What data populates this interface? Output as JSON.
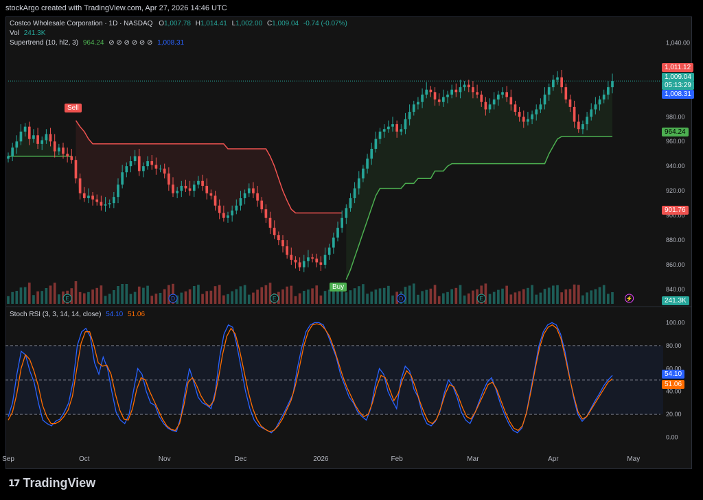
{
  "header": {
    "text": "stockArgo created with TradingView.com, Apr 27, 2026 14:46 UTC"
  },
  "legend": {
    "symbol": "Costco Wholesale Corporation · 1D · NASDAQ",
    "o_label": "O",
    "o": "1,007.78",
    "h_label": "H",
    "h": "1,014.41",
    "l_label": "L",
    "l": "1,002.00",
    "c_label": "C",
    "c": "1,009.04",
    "change": "-0.74 (-0.07%)",
    "vol_label": "Vol",
    "vol": "241.3K",
    "supertrend_label": "Supertrend (10, hl2, 3)",
    "supertrend_value": "964.24",
    "supertrend_empty": "⊘ ⊘ ⊘ ⊘ ⊘ ⊘",
    "supertrend_value2": "1,008.31",
    "stoch_label": "Stoch RSI (3, 3, 14, 14, close)",
    "stoch_k": "54.10",
    "stoch_d": "51.06"
  },
  "price_tags": {
    "high": "1,011.12",
    "last": "1,009.04",
    "countdown": "05:13:29",
    "supertrend_up": "1,008.31",
    "supertrend_low": "964.24",
    "sell_level": "901.76",
    "volume": "241.3K"
  },
  "signals": {
    "sell": "Sell",
    "buy": "Buy"
  },
  "markers": {
    "earnings": "E",
    "dividend": "D",
    "split": "⚡"
  },
  "footer": {
    "brand": "TradingView"
  },
  "colors": {
    "up": "#26a69a",
    "down": "#ef5350",
    "supertrend_up": "#4caf50",
    "supertrend_down": "#ef5350",
    "stoch_k": "#2962ff",
    "stoch_d": "#ff6d00"
  },
  "chart_data": [
    {
      "type": "candlestick",
      "title": "Costco Wholesale Corporation · 1D · NASDAQ",
      "y_ticks": [
        840,
        860,
        880,
        900,
        920,
        940,
        960,
        980,
        1000,
        1020,
        1040
      ],
      "y_tick_labels": [
        "840.00",
        "860.00",
        "880.00",
        "900.00",
        "920.00",
        "940.00",
        "960.00",
        "980.00",
        "1,000.00",
        "1,020.00",
        "1,040.00"
      ],
      "ylim": [
        830,
        1048
      ],
      "x_tick_labels": [
        "Sep",
        "Oct",
        "Nov",
        "Dec",
        "2026",
        "Feb",
        "Mar",
        "Apr",
        "May"
      ],
      "x_tick_positions": [
        0,
        18,
        37,
        55,
        74,
        92,
        110,
        129,
        148
      ],
      "close": [
        948,
        955,
        960,
        968,
        972,
        962,
        965,
        958,
        961,
        966,
        960,
        952,
        955,
        950,
        948,
        945,
        930,
        918,
        914,
        916,
        913,
        911,
        908,
        909,
        910,
        915,
        925,
        935,
        940,
        944,
        948,
        936,
        940,
        944,
        941,
        938,
        938,
        934,
        925,
        918,
        920,
        924,
        922,
        920,
        925,
        928,
        924,
        918,
        916,
        908,
        902,
        898,
        900,
        904,
        908,
        914,
        918,
        922,
        918,
        912,
        905,
        898,
        890,
        884,
        880,
        875,
        868,
        864,
        862,
        858,
        863,
        866,
        865,
        862,
        860,
        868,
        874,
        882,
        890,
        898,
        906,
        914,
        922,
        930,
        938,
        946,
        954,
        962,
        968,
        970,
        972,
        974,
        968,
        970,
        978,
        984,
        990,
        992,
        998,
        1002,
        1000,
        994,
        992,
        996,
        998,
        1002,
        1000,
        1004,
        1006,
        1004,
        1000,
        998,
        992,
        986,
        990,
        994,
        998,
        1000,
        996,
        990,
        984,
        980,
        976,
        978,
        982,
        986,
        990,
        998,
        1004,
        1010,
        1012,
        1004,
        994,
        988,
        976,
        970,
        974,
        980,
        986,
        990,
        994,
        998,
        1004,
        1009
      ],
      "supertrend_up_start": 80,
      "supertrend": [
        948,
        948,
        948,
        948,
        948,
        948,
        948,
        948,
        948,
        948,
        948,
        948,
        948,
        948,
        948,
        948,
        977,
        972,
        968,
        962,
        958,
        958,
        958,
        958,
        958,
        958,
        958,
        958,
        958,
        958,
        958,
        958,
        958,
        958,
        958,
        958,
        958,
        958,
        958,
        958,
        958,
        958,
        958,
        958,
        958,
        958,
        958,
        958,
        958,
        958,
        958,
        958,
        954,
        954,
        954,
        954,
        954,
        954,
        954,
        954,
        954,
        954,
        948,
        940,
        930,
        920,
        912,
        905,
        902,
        902,
        902,
        902,
        902,
        902,
        902,
        902,
        902,
        902,
        902,
        902,
        848,
        856,
        866,
        876,
        886,
        896,
        906,
        916,
        922,
        922,
        922,
        922,
        922,
        922,
        926,
        926,
        926,
        930,
        930,
        930,
        930,
        936,
        936,
        936,
        940,
        942,
        942,
        942,
        942,
        942,
        942,
        942,
        942,
        942,
        942,
        942,
        942,
        942,
        942,
        942,
        942,
        942,
        942,
        942,
        942,
        942,
        942,
        942,
        950,
        956,
        962,
        964,
        964,
        964,
        964,
        964,
        964,
        964,
        964,
        964,
        964,
        964,
        964,
        964,
        964,
        964
      ]
    },
    {
      "type": "line",
      "title": "Stoch RSI (3, 3, 14, 14, close)",
      "ylim": [
        -5,
        105
      ],
      "y_ticks": [
        0,
        20,
        40,
        60,
        80,
        100
      ],
      "y_tick_labels": [
        "0.00",
        "20.00",
        "40.00",
        "60.00",
        "80.00",
        "100.00"
      ],
      "bands": [
        20,
        50,
        80
      ],
      "series": [
        {
          "name": "K",
          "values": [
            18,
            30,
            55,
            75,
            72,
            58,
            48,
            30,
            15,
            12,
            10,
            14,
            16,
            22,
            30,
            48,
            80,
            92,
            95,
            88,
            65,
            55,
            70,
            60,
            40,
            22,
            15,
            12,
            20,
            40,
            60,
            55,
            40,
            30,
            28,
            18,
            12,
            8,
            6,
            5,
            18,
            40,
            60,
            48,
            35,
            30,
            28,
            25,
            40,
            70,
            90,
            98,
            96,
            80,
            60,
            40,
            25,
            15,
            10,
            8,
            6,
            4,
            8,
            15,
            22,
            30,
            38,
            60,
            78,
            92,
            98,
            100,
            100,
            98,
            90,
            80,
            70,
            55,
            45,
            35,
            30,
            22,
            18,
            15,
            25,
            45,
            60,
            55,
            40,
            32,
            25,
            50,
            62,
            58,
            42,
            35,
            20,
            12,
            10,
            14,
            22,
            38,
            50,
            45,
            35,
            22,
            15,
            12,
            20,
            30,
            40,
            48,
            52,
            42,
            30,
            20,
            12,
            6,
            4,
            8,
            20,
            40,
            60,
            80,
            92,
            98,
            100,
            98,
            90,
            75,
            55,
            35,
            20,
            14,
            18,
            25,
            32,
            38,
            45,
            50,
            54
          ]
        },
        {
          "name": "D",
          "values": [
            15,
            22,
            38,
            60,
            72,
            68,
            58,
            45,
            28,
            18,
            12,
            12,
            14,
            18,
            24,
            36,
            60,
            82,
            92,
            92,
            80,
            65,
            62,
            63,
            55,
            38,
            24,
            16,
            15,
            25,
            42,
            52,
            50,
            40,
            32,
            24,
            16,
            10,
            7,
            6,
            12,
            28,
            48,
            52,
            45,
            36,
            30,
            27,
            32,
            50,
            72,
            88,
            95,
            90,
            76,
            58,
            40,
            26,
            16,
            10,
            7,
            5,
            6,
            10,
            16,
            24,
            32,
            45,
            62,
            80,
            92,
            98,
            99,
            98,
            94,
            88,
            78,
            66,
            54,
            44,
            36,
            28,
            22,
            18,
            20,
            30,
            44,
            54,
            52,
            42,
            32,
            38,
            50,
            58,
            54,
            44,
            32,
            22,
            14,
            12,
            16,
            26,
            38,
            46,
            44,
            36,
            26,
            18,
            16,
            22,
            30,
            38,
            46,
            48,
            42,
            32,
            22,
            14,
            8,
            6,
            10,
            22,
            40,
            60,
            78,
            90,
            96,
            98,
            95,
            86,
            70,
            52,
            36,
            22,
            16,
            18,
            24,
            30,
            36,
            42,
            48,
            51
          ]
        }
      ]
    }
  ]
}
